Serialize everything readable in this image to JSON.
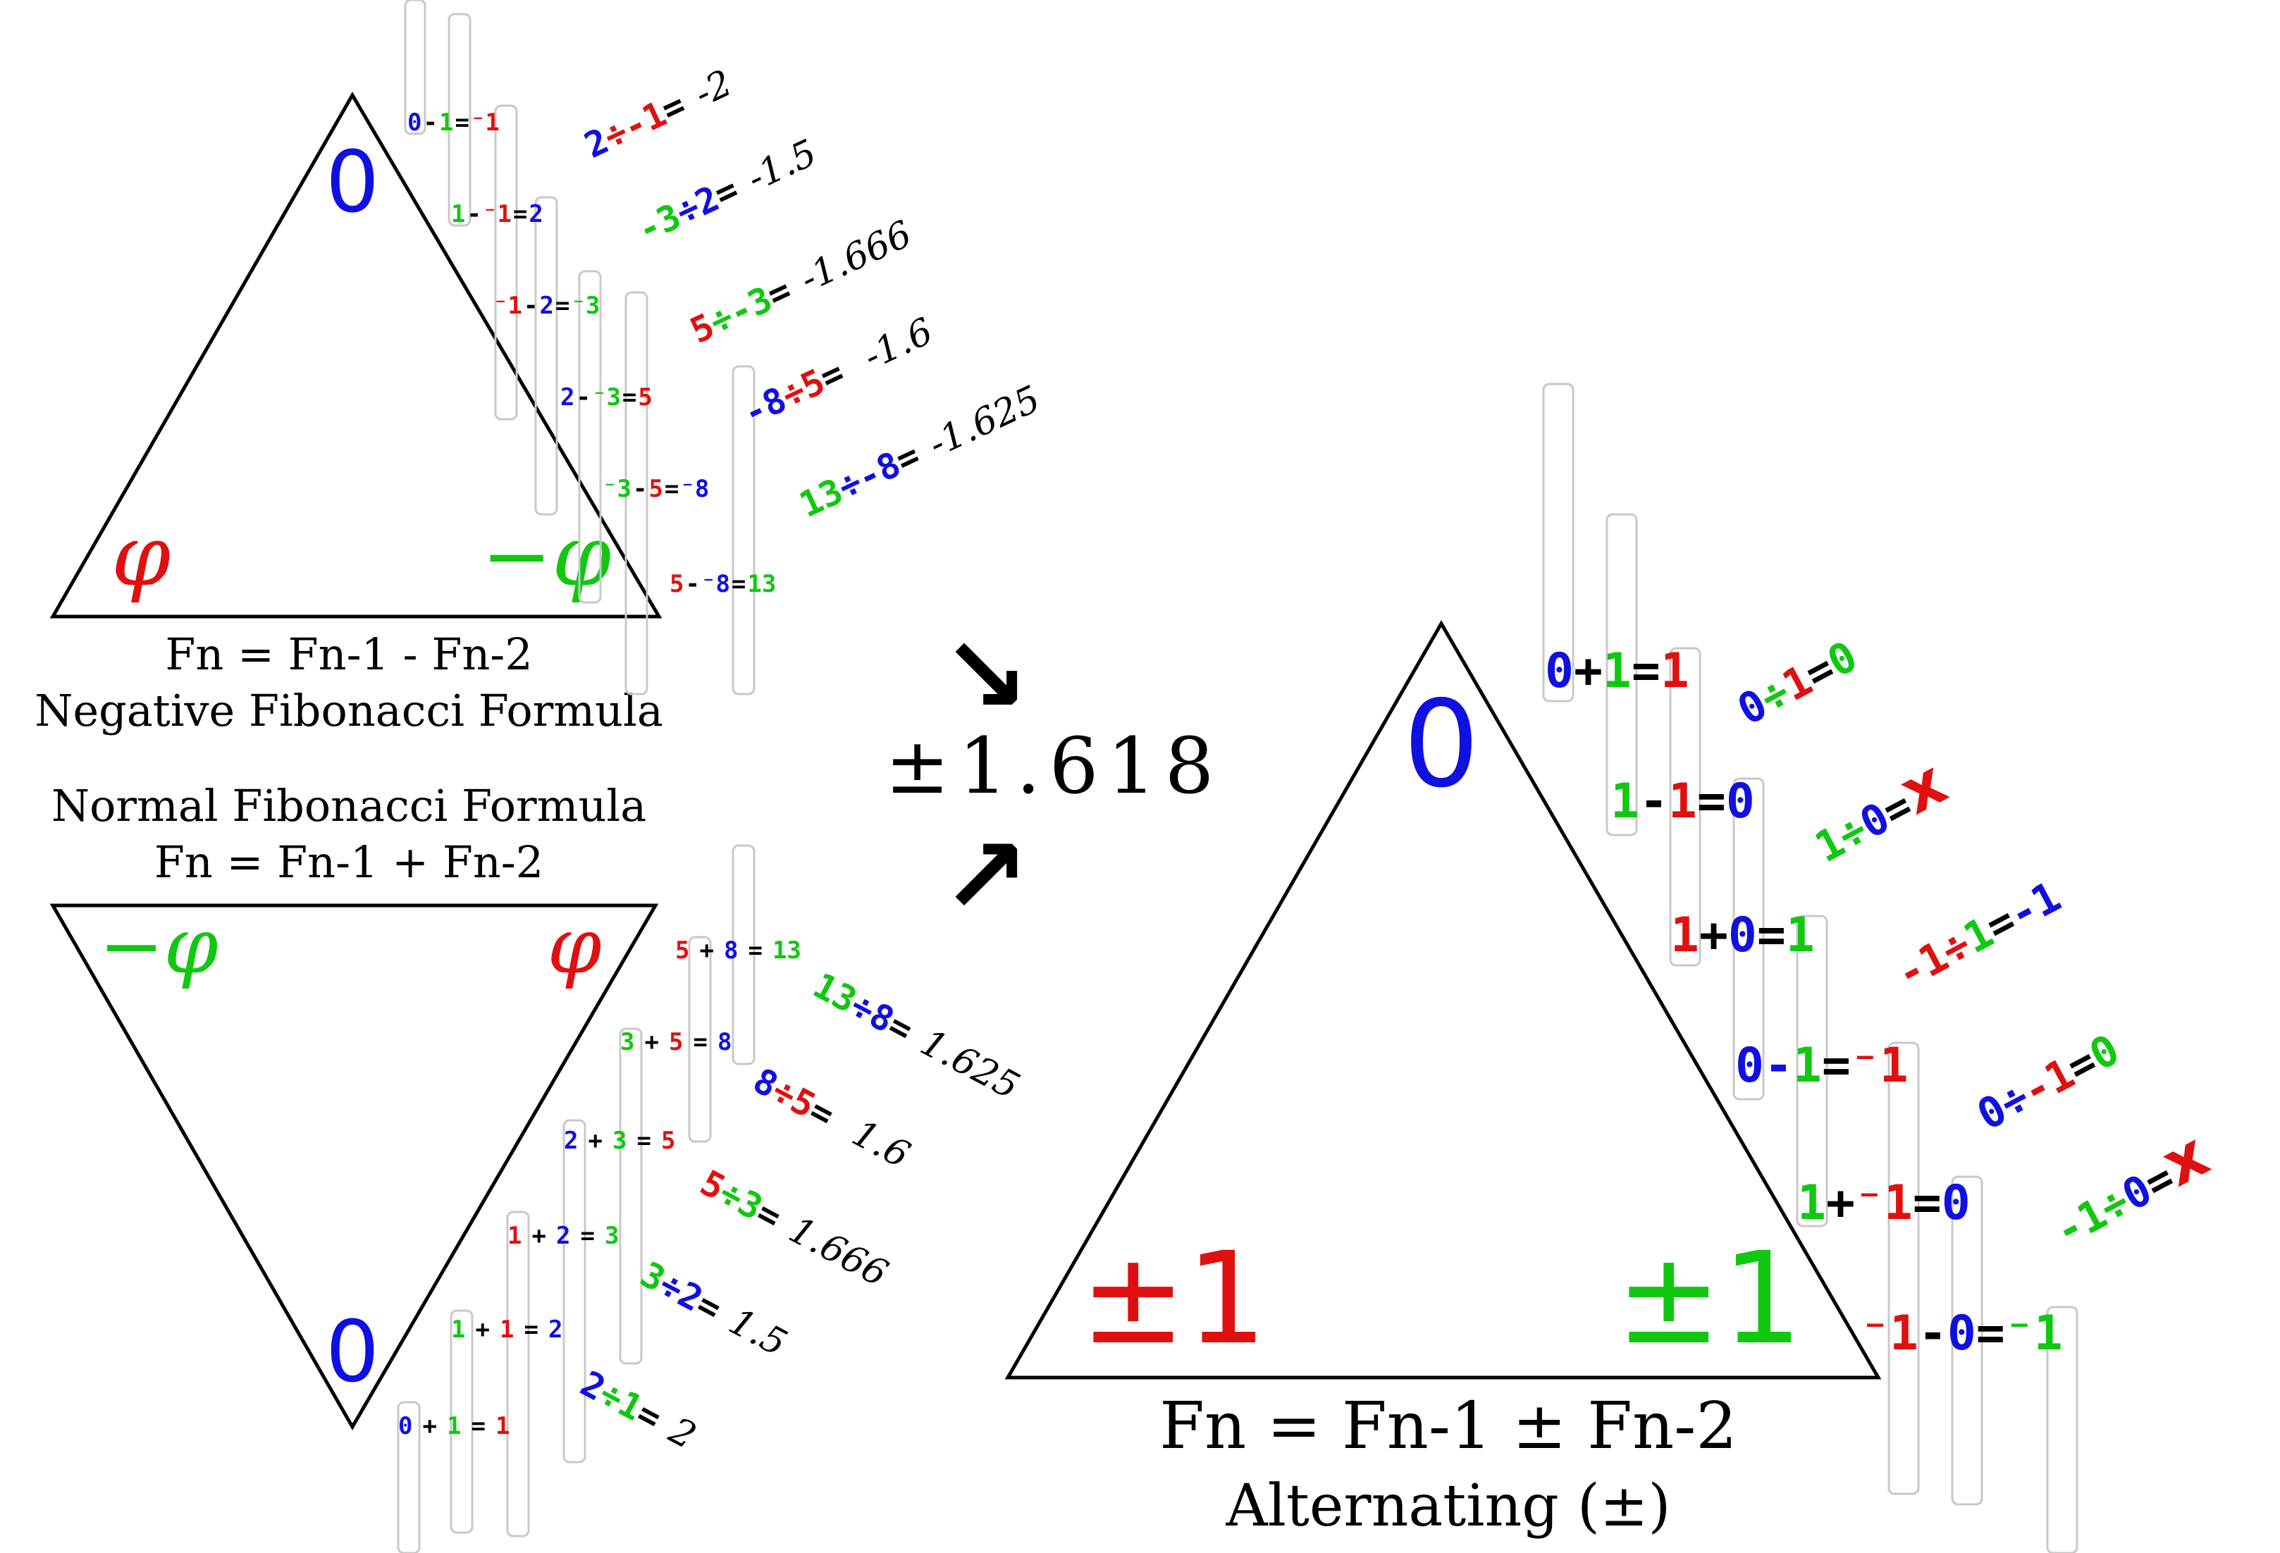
{
  "colors": {
    "blue": "#1010e0",
    "green": "#10c810",
    "red": "#e01010",
    "black": "#000000",
    "box": "#c8c8c8"
  },
  "top_left": {
    "vertex_top": "0",
    "vertex_left": "φ",
    "vertex_right": "−φ",
    "formula": "Fn = Fn-1 - Fn-2",
    "caption": "Negative Fibonacci Formula",
    "rows": [
      [
        {
          "t": "0",
          "c": "blue"
        },
        {
          "t": "-",
          "c": "black"
        },
        {
          "t": "1",
          "c": "green"
        },
        {
          "t": "=",
          "c": "black"
        },
        {
          "t": "⁻1",
          "c": "red"
        }
      ],
      [
        {
          "t": "1",
          "c": "green"
        },
        {
          "t": "-",
          "c": "black"
        },
        {
          "t": "⁻1",
          "c": "red"
        },
        {
          "t": "=",
          "c": "black"
        },
        {
          "t": "2",
          "c": "blue"
        }
      ],
      [
        {
          "t": "⁻1",
          "c": "red"
        },
        {
          "t": "-",
          "c": "black"
        },
        {
          "t": "2",
          "c": "blue"
        },
        {
          "t": "=",
          "c": "black"
        },
        {
          "t": "⁻3",
          "c": "green"
        }
      ],
      [
        {
          "t": "2",
          "c": "blue"
        },
        {
          "t": "-",
          "c": "black"
        },
        {
          "t": "⁻3",
          "c": "green"
        },
        {
          "t": "=",
          "c": "black"
        },
        {
          "t": "5",
          "c": "red"
        }
      ],
      [
        {
          "t": "⁻3",
          "c": "green"
        },
        {
          "t": "-",
          "c": "black"
        },
        {
          "t": "5",
          "c": "red"
        },
        {
          "t": "=",
          "c": "black"
        },
        {
          "t": "⁻8",
          "c": "blue"
        }
      ],
      [
        {
          "t": "5",
          "c": "red"
        },
        {
          "t": "-",
          "c": "black"
        },
        {
          "t": "⁻8",
          "c": "blue"
        },
        {
          "t": "=",
          "c": "black"
        },
        {
          "t": "13",
          "c": "green"
        }
      ]
    ],
    "ratios": [
      {
        "n": "2",
        "nc": "blue",
        "d": "-1",
        "dc": "red",
        "r": "-2"
      },
      {
        "n": "-3",
        "nc": "green",
        "d": "2",
        "dc": "blue",
        "r": "-1.5"
      },
      {
        "n": "5",
        "nc": "red",
        "d": "-3",
        "dc": "green",
        "r": "-1.666"
      },
      {
        "n": "-8",
        "nc": "blue",
        "d": "5",
        "dc": "red",
        "r": " -1.6"
      },
      {
        "n": "13",
        "nc": "green",
        "d": "-8",
        "dc": "blue",
        "r": "-1.625"
      }
    ]
  },
  "bottom_left": {
    "title": "Normal Fibonacci Formula",
    "formula": "Fn = Fn-1 + Fn-2",
    "vertex_left": "−φ",
    "vertex_right": "φ",
    "vertex_bottom": "0",
    "rows": [
      [
        {
          "t": "5",
          "c": "red"
        },
        {
          "t": "+",
          "c": "black"
        },
        {
          "t": "8",
          "c": "blue"
        },
        {
          "t": "=",
          "c": "black"
        },
        {
          "t": "13",
          "c": "green"
        }
      ],
      [
        {
          "t": "3",
          "c": "green"
        },
        {
          "t": "+",
          "c": "black"
        },
        {
          "t": "5",
          "c": "red"
        },
        {
          "t": "=",
          "c": "black"
        },
        {
          "t": "8",
          "c": "blue"
        }
      ],
      [
        {
          "t": "2",
          "c": "blue"
        },
        {
          "t": "+",
          "c": "black"
        },
        {
          "t": "3",
          "c": "green"
        },
        {
          "t": "=",
          "c": "black"
        },
        {
          "t": "5",
          "c": "red"
        }
      ],
      [
        {
          "t": "1",
          "c": "red"
        },
        {
          "t": "+",
          "c": "black"
        },
        {
          "t": "2",
          "c": "blue"
        },
        {
          "t": "=",
          "c": "black"
        },
        {
          "t": "3",
          "c": "green"
        }
      ],
      [
        {
          "t": "1",
          "c": "green"
        },
        {
          "t": "+",
          "c": "black"
        },
        {
          "t": "1",
          "c": "red"
        },
        {
          "t": "=",
          "c": "black"
        },
        {
          "t": "2",
          "c": "blue"
        }
      ],
      [
        {
          "t": "0",
          "c": "blue"
        },
        {
          "t": "+",
          "c": "black"
        },
        {
          "t": "1",
          "c": "green"
        },
        {
          "t": "=",
          "c": "black"
        },
        {
          "t": "1",
          "c": "red"
        }
      ]
    ],
    "ratios": [
      {
        "n": "13",
        "nc": "green",
        "d": "8",
        "dc": "blue",
        "r": "1.625"
      },
      {
        "n": "8",
        "nc": "blue",
        "d": "5",
        "dc": "red",
        "r": " 1.6"
      },
      {
        "n": "5",
        "nc": "red",
        "d": "3",
        "dc": "green",
        "r": "1.666"
      },
      {
        "n": "3",
        "nc": "green",
        "d": "2",
        "dc": "blue",
        "r": "1.5"
      },
      {
        "n": "2",
        "nc": "blue",
        "d": "1",
        "dc": "green",
        "r": "2"
      }
    ]
  },
  "center": {
    "value": "±1.618",
    "arrow_down": "↘",
    "arrow_up": "↗"
  },
  "right": {
    "vertex_top": "0",
    "vertex_left": "±1",
    "vertex_right": "±1",
    "formula": "Fn = Fn-1 ± Fn-2",
    "caption": "Alternating (±)",
    "rows": [
      [
        {
          "t": "0",
          "c": "blue"
        },
        {
          "t": "+",
          "c": "black"
        },
        {
          "t": "1",
          "c": "green"
        },
        {
          "t": "=",
          "c": "black"
        },
        {
          "t": "1",
          "c": "red"
        }
      ],
      [
        {
          "t": "1",
          "c": "green"
        },
        {
          "t": "-",
          "c": "black"
        },
        {
          "t": "1",
          "c": "red"
        },
        {
          "t": "=",
          "c": "black"
        },
        {
          "t": "0",
          "c": "blue"
        }
      ],
      [
        {
          "t": "1",
          "c": "red"
        },
        {
          "t": "+",
          "c": "black"
        },
        {
          "t": "0",
          "c": "blue"
        },
        {
          "t": "=",
          "c": "black"
        },
        {
          "t": "1",
          "c": "green"
        }
      ],
      [
        {
          "t": "0",
          "c": "blue"
        },
        {
          "t": "-",
          "c": "blue"
        },
        {
          "t": "1",
          "c": "green"
        },
        {
          "t": "=",
          "c": "black"
        },
        {
          "t": "⁻1",
          "c": "red"
        }
      ],
      [
        {
          "t": "1",
          "c": "green"
        },
        {
          "t": "+",
          "c": "black"
        },
        {
          "t": "⁻1",
          "c": "red"
        },
        {
          "t": "=",
          "c": "black"
        },
        {
          "t": "0",
          "c": "blue"
        }
      ],
      [
        {
          "t": "⁻1",
          "c": "red"
        },
        {
          "t": "-",
          "c": "black"
        },
        {
          "t": "0",
          "c": "blue"
        },
        {
          "t": "=",
          "c": "black"
        },
        {
          "t": "⁻1",
          "c": "green"
        }
      ]
    ],
    "ratios": [
      [
        {
          "t": "0",
          "c": "blue"
        },
        {
          "t": "÷",
          "c": "green"
        },
        {
          "t": "1",
          "c": "red"
        },
        {
          "t": "=",
          "c": "black"
        },
        {
          "t": "0",
          "c": "green"
        }
      ],
      [
        {
          "t": "1",
          "c": "green"
        },
        {
          "t": "÷",
          "c": "green"
        },
        {
          "t": "0",
          "c": "blue"
        },
        {
          "t": "=",
          "c": "black"
        },
        {
          "t": "x",
          "c": "red"
        }
      ],
      [
        {
          "t": "-1",
          "c": "red"
        },
        {
          "t": "÷",
          "c": "red"
        },
        {
          "t": "1",
          "c": "green"
        },
        {
          "t": "=",
          "c": "black"
        },
        {
          "t": "-1",
          "c": "blue"
        }
      ],
      [
        {
          "t": "0",
          "c": "blue"
        },
        {
          "t": "÷",
          "c": "blue"
        },
        {
          "t": "-1",
          "c": "red"
        },
        {
          "t": "=",
          "c": "black"
        },
        {
          "t": "0",
          "c": "green"
        }
      ],
      [
        {
          "t": "-1",
          "c": "green"
        },
        {
          "t": "÷",
          "c": "green"
        },
        {
          "t": "0",
          "c": "blue"
        },
        {
          "t": "=",
          "c": "black"
        },
        {
          "t": "x",
          "c": "red"
        }
      ]
    ]
  }
}
